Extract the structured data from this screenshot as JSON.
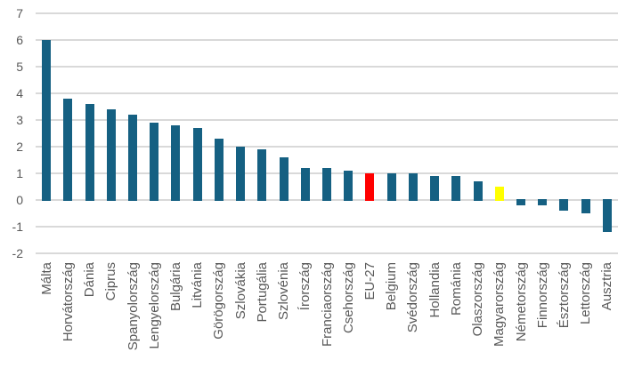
{
  "chart_data": {
    "type": "bar",
    "title": "",
    "xlabel": "",
    "ylabel": "",
    "categories": [
      "Málta",
      "Horvátország",
      "Dánia",
      "Ciprus",
      "Spanyolország",
      "Lengyelország",
      "Bulgária",
      "Litvánia",
      "Görögország",
      "Szlovákia",
      "Portugália",
      "Szlovénia",
      "Írország",
      "Franciaország",
      "Csehország",
      "EU-27",
      "Belgium",
      "Svédország",
      "Hollandia",
      "Románia",
      "Olaszország",
      "Magyarország",
      "Németország",
      "Finnország",
      "Észtország",
      "Lettország",
      "Ausztria"
    ],
    "values": [
      6.0,
      3.8,
      3.6,
      3.4,
      3.2,
      2.9,
      2.8,
      2.7,
      2.3,
      2.0,
      1.9,
      1.6,
      1.2,
      1.2,
      1.1,
      1.0,
      1.0,
      1.0,
      0.9,
      0.9,
      0.7,
      0.5,
      -0.2,
      -0.2,
      -0.4,
      -0.5,
      -1.2
    ],
    "ylim": [
      -2,
      7
    ],
    "yticks": [
      7,
      6,
      5,
      4,
      3,
      2,
      1,
      0,
      -1,
      -2
    ],
    "grid": true,
    "legend": false,
    "highlighted_bars": {
      "EU-27": "#FF0000",
      "Magyarország": "#FFFF00"
    },
    "colors": {
      "bar_default": "#156082",
      "gridline": "#D9D9D9",
      "tick_label": "#595959",
      "category_label": "#595959",
      "background": "#FFFFFF"
    }
  }
}
